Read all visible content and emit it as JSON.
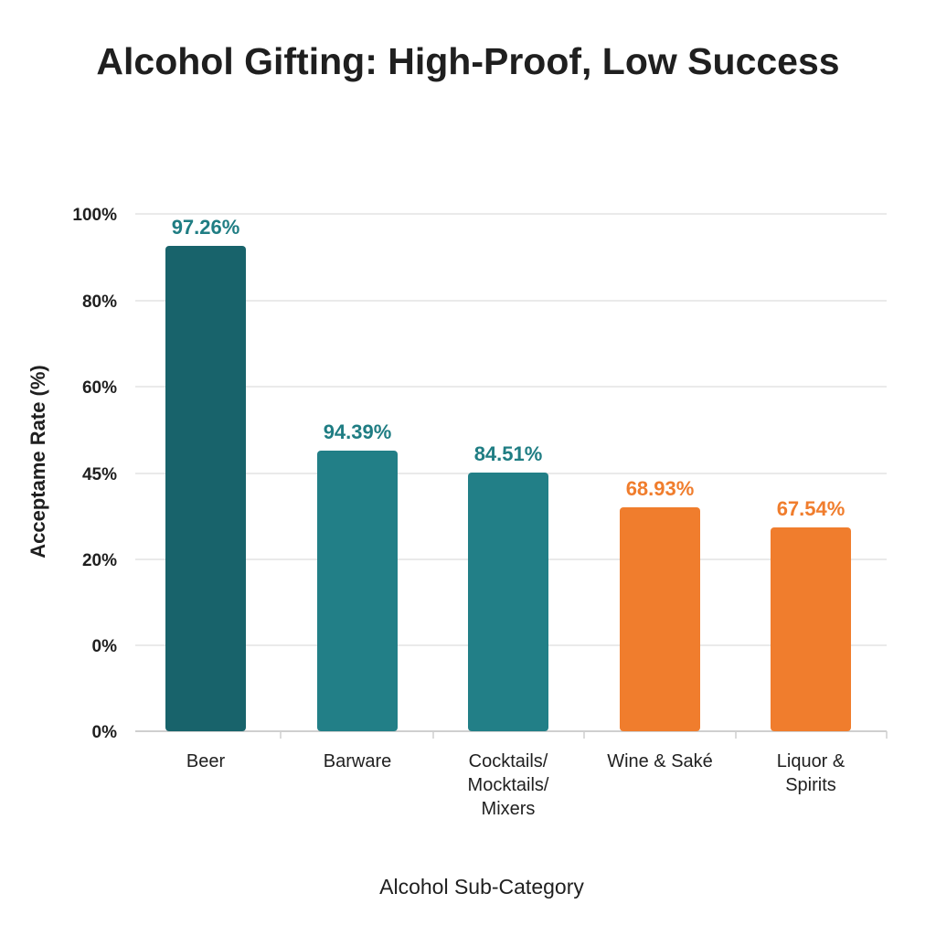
{
  "chart_data": {
    "type": "bar",
    "title": "Alcohol Gifting: High-Proof, Low Success",
    "xlabel": "Alcohol Sub-Category",
    "ylabel": "Acceptame Rate (%)",
    "y_tick_labels": [
      "0%",
      "0%",
      "20%",
      "45%",
      "60%",
      "80%",
      "100%"
    ],
    "grid": true,
    "categories": [
      [
        "Beer"
      ],
      [
        "Barware"
      ],
      [
        "Cocktails/",
        "Mocktails/",
        "Mixers"
      ],
      [
        "Wine & Saké"
      ],
      [
        "Liquor &",
        "Spirits"
      ]
    ],
    "values": [
      97.26,
      94.39,
      84.51,
      68.93,
      67.54
    ],
    "value_labels": [
      "97.26%",
      "94.39%",
      "84.51%",
      "68.93%",
      "67.54%"
    ],
    "bar_colors": [
      "#18636b",
      "#227f87",
      "#227f87",
      "#f07d2d",
      "#f07d2d"
    ],
    "label_colors": [
      "#1f7d83",
      "#1f7d83",
      "#1f7d83",
      "#f07d2d",
      "#f07d2d"
    ],
    "grid_color": "#e3e3e3",
    "axis_color": "#cfcfcf"
  }
}
